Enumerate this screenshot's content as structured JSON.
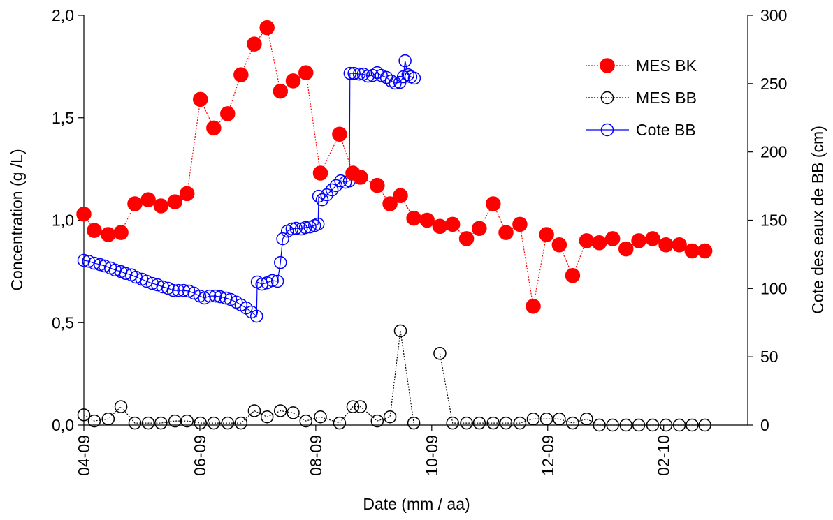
{
  "chart_data": {
    "type": "line",
    "xlabel": "Date (mm / aa)",
    "ylabel": "Concentration (g /L)",
    "y2label": "Cote des eaux de BB (cm)",
    "legend": "upper right",
    "xlim": [
      0,
      11.45
    ],
    "xticks": [
      {
        "value": 0,
        "label": "04-09"
      },
      {
        "value": 2,
        "label": "06-09"
      },
      {
        "value": 4,
        "label": "08-09"
      },
      {
        "value": 6,
        "label": "10-09"
      },
      {
        "value": 8,
        "label": "12-09"
      },
      {
        "value": 10,
        "label": "02-10"
      }
    ],
    "ylim": [
      0,
      2
    ],
    "yticks": [
      {
        "value": 0,
        "label": "0,0"
      },
      {
        "value": 0.5,
        "label": "0,5"
      },
      {
        "value": 1,
        "label": "1,0"
      },
      {
        "value": 1.5,
        "label": "1,5"
      },
      {
        "value": 2,
        "label": "2,0"
      }
    ],
    "y2lim": [
      0,
      300
    ],
    "y2ticks": [
      0,
      50,
      100,
      150,
      200,
      250,
      300
    ],
    "x": [
      0,
      0.18,
      0.42,
      0.64,
      0.88,
      1.11,
      1.33,
      1.57,
      1.78,
      2.01,
      2.24,
      2.48,
      2.71,
      2.94,
      3.16,
      3.39,
      3.61,
      3.83,
      4.08,
      4.41,
      4.64,
      4.77,
      5.06,
      5.28,
      5.46,
      5.69,
      5.92,
      6.14,
      6.36,
      6.6,
      6.82,
      7.06,
      7.28,
      7.52,
      7.75,
      7.98,
      8.2,
      8.43,
      8.67,
      8.89,
      9.12,
      9.35,
      9.57,
      9.81,
      10.04,
      10.27,
      10.49,
      10.71
    ],
    "series": [
      {
        "name": "MES BK",
        "color": "#ff0000",
        "marker": "filled",
        "linestyle": "dotted",
        "values": [
          1.03,
          0.95,
          0.93,
          0.94,
          1.08,
          1.1,
          1.07,
          1.09,
          1.13,
          1.59,
          1.45,
          1.52,
          1.71,
          1.86,
          1.94,
          1.63,
          1.68,
          1.72,
          1.23,
          1.42,
          1.23,
          1.21,
          1.17,
          1.08,
          1.12,
          1.01,
          1.0,
          0.97,
          0.98,
          0.91,
          0.96,
          1.08,
          0.94,
          0.98,
          0.58,
          0.93,
          0.88,
          0.73,
          0.9,
          0.89,
          0.91,
          0.86,
          0.9,
          0.91,
          0.88,
          0.88,
          0.85,
          0.85
        ]
      },
      {
        "name": "MES BB",
        "color": "#000000",
        "marker": "open",
        "linestyle": "dotted",
        "values": [
          0.05,
          0.02,
          0.03,
          0.09,
          0.01,
          0.01,
          0.01,
          0.02,
          0.02,
          0.01,
          0.01,
          0.01,
          0.01,
          0.07,
          0.04,
          0.07,
          0.06,
          0.02,
          0.04,
          0.01,
          0.09,
          0.09,
          0.02,
          0.04,
          0.46,
          0.01,
          null,
          0.35,
          0.01,
          0.01,
          0.01,
          0.01,
          0.01,
          0.01,
          0.03,
          0.03,
          0.03,
          0.01,
          0.03,
          0,
          0,
          0,
          0,
          0,
          0,
          0,
          0,
          0
        ]
      },
      {
        "name": "Cote BB",
        "color": "#0000ff",
        "marker": "open",
        "linestyle": "solid",
        "axis": "y2",
        "x": [
          0,
          0.08,
          0.18,
          0.28,
          0.36,
          0.46,
          0.54,
          0.64,
          0.72,
          0.82,
          0.9,
          1.0,
          1.08,
          1.18,
          1.27,
          1.36,
          1.45,
          1.54,
          1.63,
          1.72,
          1.81,
          1.9,
          2.0,
          2.08,
          2.17,
          2.27,
          2.35,
          2.45,
          2.53,
          2.63,
          2.71,
          2.8,
          2.89,
          2.98,
          2.99,
          3.07,
          3.16,
          3.25,
          3.34,
          3.39,
          3.43,
          3.51,
          3.59,
          3.66,
          3.75,
          3.82,
          3.9,
          3.98,
          4.04,
          4.05,
          4.11,
          4.19,
          4.28,
          4.35,
          4.43,
          4.51,
          4.58,
          4.59,
          4.66,
          4.75,
          4.82,
          4.9,
          4.98,
          5.06,
          5.13,
          5.22,
          5.3,
          5.37,
          5.45,
          5.51,
          5.54,
          5.59,
          5.64,
          5.7
        ],
        "values": [
          120.6,
          120,
          118.5,
          117.5,
          116.5,
          115,
          113.5,
          112.4,
          111,
          110,
          108.3,
          106.8,
          105.3,
          103.7,
          102.7,
          101.2,
          100.2,
          98.6,
          98.6,
          98.6,
          98.1,
          96.6,
          94.5,
          93,
          94.5,
          94.5,
          94,
          93,
          92,
          90,
          88,
          85.8,
          82.8,
          79.7,
          104.8,
          103.2,
          104.2,
          105.8,
          105.3,
          119,
          136.4,
          142,
          143.6,
          144.1,
          143.6,
          144.6,
          145.1,
          146.1,
          147.2,
          167.6,
          165,
          168.6,
          172.2,
          175.3,
          178.8,
          177.8,
          178.8,
          257.5,
          257.5,
          257,
          257,
          255.5,
          256,
          258,
          256,
          254.5,
          251.9,
          250.4,
          250.9,
          255,
          266.7,
          256.5,
          255,
          254
        ]
      }
    ]
  }
}
